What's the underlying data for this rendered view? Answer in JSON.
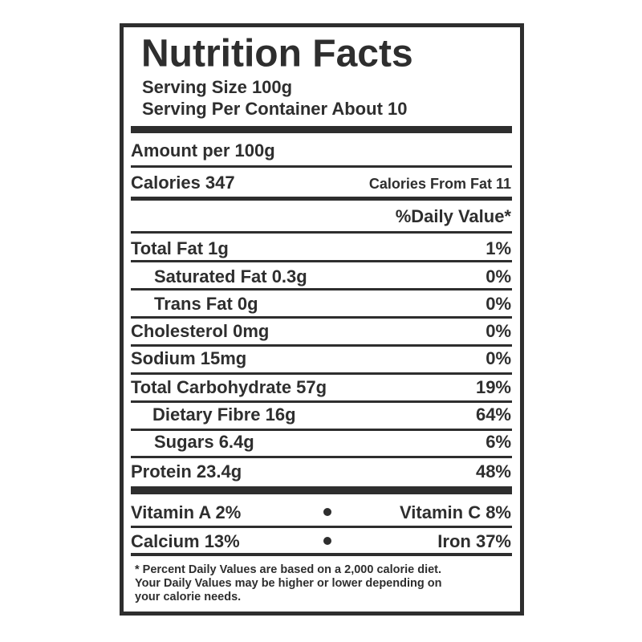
{
  "label": {
    "title": "Nutrition Facts",
    "serving_size": "Serving Size 100g",
    "servings_per_container": "Serving Per Container About 10",
    "amount_per": "Amount per 100g",
    "calories": "Calories 347",
    "calories_from_fat": "Calories From Fat 11",
    "daily_value_header": "%Daily Value*",
    "nutrients": [
      {
        "name": "Total Fat 1g",
        "dv": "1%"
      },
      {
        "name": "Saturated Fat 0.3g",
        "dv": "0%"
      },
      {
        "name": "Trans Fat 0g",
        "dv": "0%"
      },
      {
        "name": "Cholesterol 0mg",
        "dv": "0%"
      },
      {
        "name": "Sodium 15mg",
        "dv": "0%"
      },
      {
        "name": "Total Carbohydrate 57g",
        "dv": "19%"
      },
      {
        "name": "Dietary Fibre 16g",
        "dv": "64%"
      },
      {
        "name": "Sugars 6.4g",
        "dv": "6%"
      },
      {
        "name": "Protein 23.4g",
        "dv": "48%"
      }
    ],
    "vitamins": [
      {
        "left": "Vitamin A 2%",
        "right": "Vitamin C 8%"
      },
      {
        "left": "Calcium 13%",
        "right": "Iron 37%"
      }
    ],
    "footnote": [
      "* Percent Daily Values are based on a 2,000 calorie diet.",
      "Your Daily Values may be higher or lower depending on",
      "your calorie needs."
    ]
  }
}
